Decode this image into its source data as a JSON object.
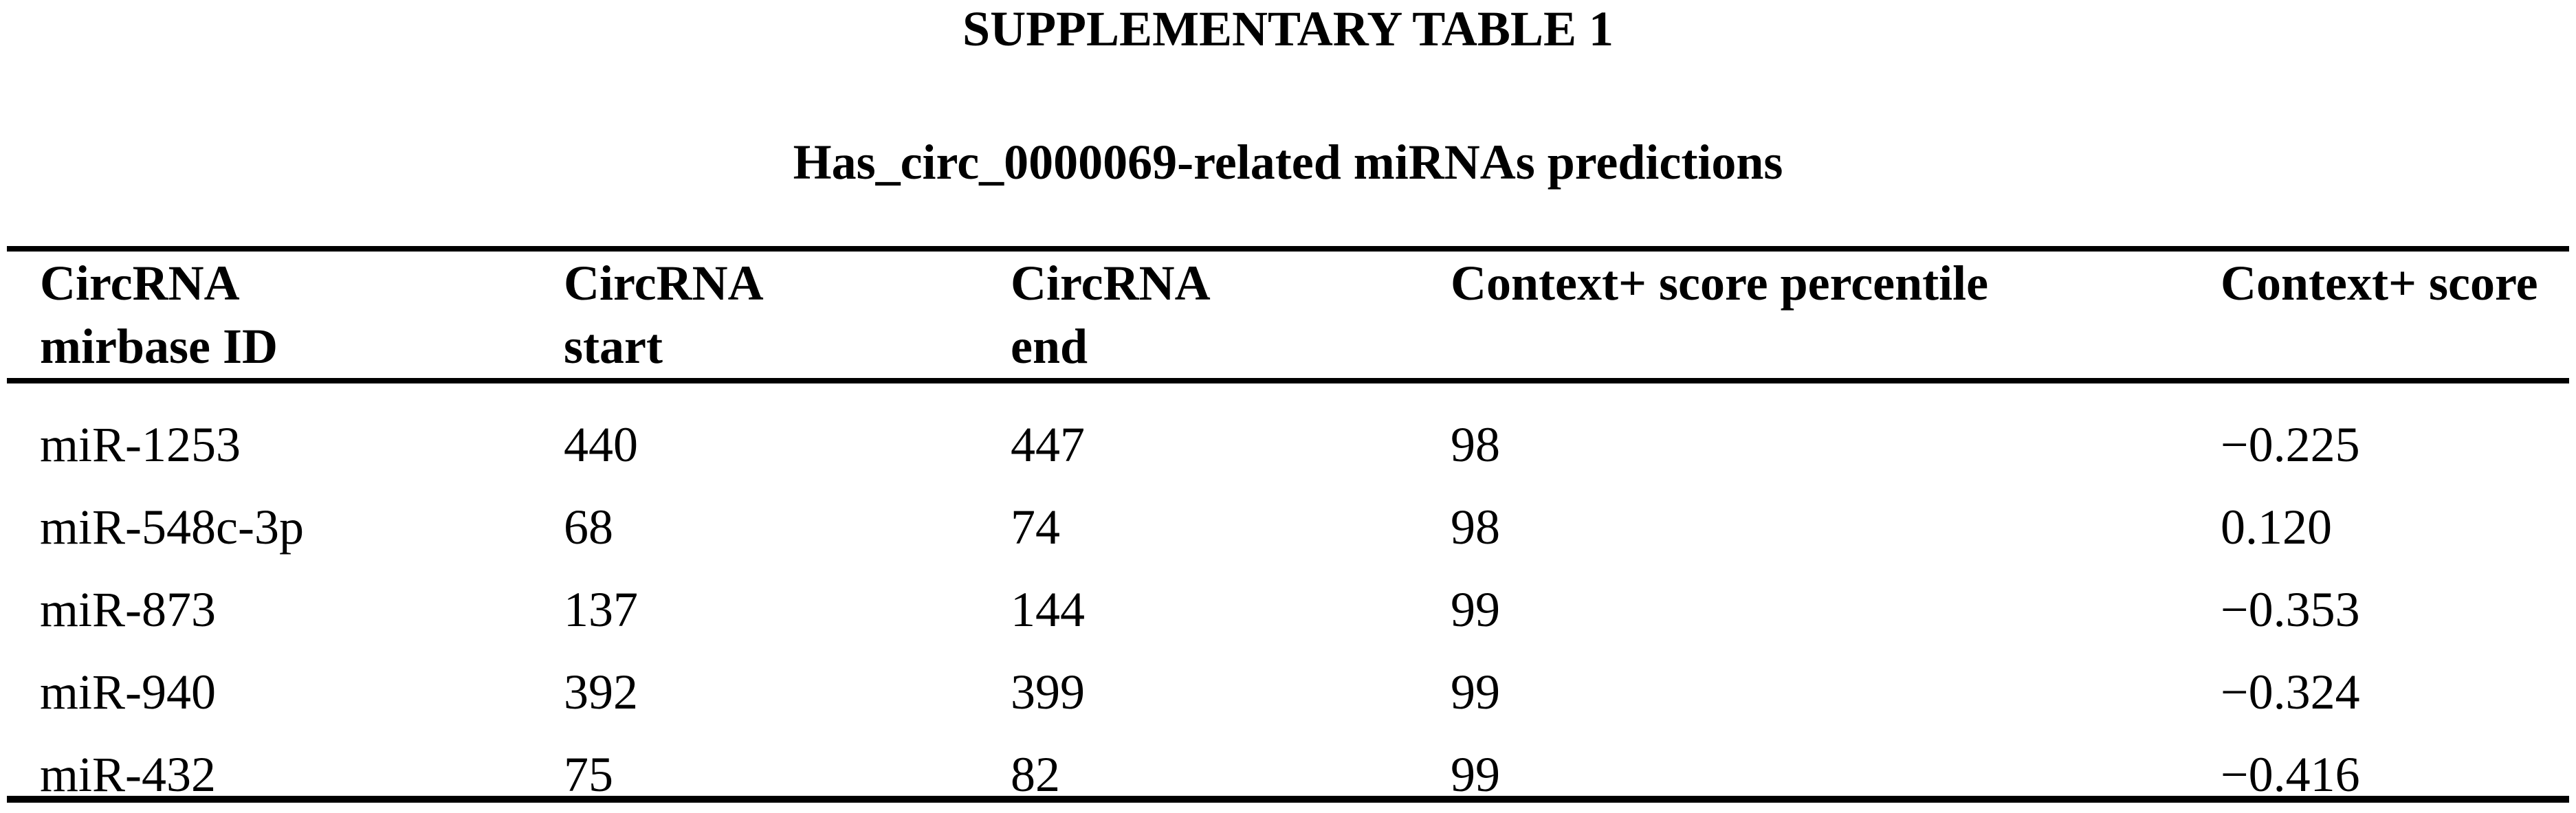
{
  "page": {
    "title": "SUPPLEMENTARY TABLE 1",
    "subtitle": "Has_circ_0000069-related miRNAs predictions"
  },
  "table": {
    "columns": [
      {
        "line1": "CircRNA",
        "line2": "mirbase ID"
      },
      {
        "line1": "CircRNA",
        "line2": "start"
      },
      {
        "line1": "CircRNA",
        "line2": "end"
      },
      {
        "line1": "Context+ score percentile",
        "line2": ""
      },
      {
        "line1": "Context+ score",
        "line2": ""
      }
    ],
    "rows": [
      [
        "miR-1253",
        "440",
        "447",
        "98",
        "−0.225"
      ],
      [
        "miR-548c-3p",
        "68",
        "74",
        "98",
        "0.120"
      ],
      [
        "miR-873",
        "137",
        "144",
        "99",
        "−0.353"
      ],
      [
        "miR-940",
        "392",
        "399",
        "99",
        "−0.324"
      ],
      [
        "miR-432",
        "75",
        "82",
        "99",
        "−0.416"
      ]
    ]
  },
  "colors": {
    "text": "#000000",
    "rule": "#000000",
    "background": "#ffffff"
  }
}
